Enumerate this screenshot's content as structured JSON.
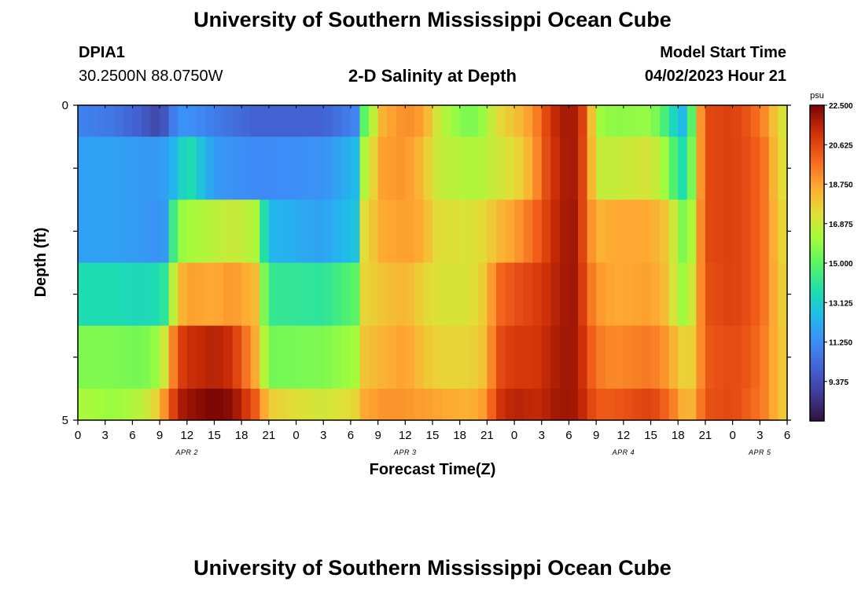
{
  "header": {
    "title": "University of Southern Mississippi Ocean Cube",
    "station_id": "DPIA1",
    "station_coords": "30.2500N  88.0750W",
    "subtitle": "2-D Salinity at Depth",
    "model_start_label": "Model Start Time",
    "model_start_value": "04/02/2023 Hour 21"
  },
  "footer": {
    "title": "University of Southern Mississippi Ocean Cube"
  },
  "chart_data": {
    "type": "heatmap",
    "title": "2-D Salinity at Depth",
    "xlabel": "Forecast Time(Z)",
    "ylabel": "Depth (ft)",
    "x_start_hour": 0,
    "x_end_hour": 78,
    "x_tick_step_hours": 3,
    "x_tick_labels": [
      "0",
      "3",
      "6",
      "9",
      "12",
      "15",
      "18",
      "21",
      "0",
      "3",
      "6",
      "9",
      "12",
      "15",
      "18",
      "21",
      "0",
      "3",
      "6",
      "9",
      "12",
      "15",
      "18",
      "21",
      "0",
      "3",
      "6"
    ],
    "day_labels": [
      {
        "label": "APR 2",
        "hour": 12
      },
      {
        "label": "APR 3",
        "hour": 36
      },
      {
        "label": "APR 4",
        "hour": 60
      },
      {
        "label": "APR 5",
        "hour": 75
      }
    ],
    "y_range": [
      0,
      5
    ],
    "y_tick_labels": [
      "0",
      "5"
    ],
    "y_minor_ticks": [
      0,
      1,
      2,
      3,
      4,
      5
    ],
    "depth_bands": [
      {
        "top": 0.0,
        "bottom": 0.5
      },
      {
        "top": 0.5,
        "bottom": 1.5
      },
      {
        "top": 1.5,
        "bottom": 2.5
      },
      {
        "top": 2.5,
        "bottom": 3.5
      },
      {
        "top": 3.5,
        "bottom": 4.5
      },
      {
        "top": 4.5,
        "bottom": 5.0
      }
    ],
    "salinity_keyframes": [
      {
        "hour": 0,
        "values": [
          11.0,
          11.8,
          11.8,
          13.6,
          15.6,
          16.4
        ]
      },
      {
        "hour": 4,
        "values": [
          10.6,
          11.8,
          11.8,
          13.6,
          15.6,
          16.0
        ]
      },
      {
        "hour": 7,
        "values": [
          9.8,
          11.6,
          11.6,
          13.4,
          15.4,
          16.6
        ]
      },
      {
        "hour": 8.5,
        "values": [
          9.2,
          11.6,
          11.4,
          13.6,
          16.0,
          17.6
        ]
      },
      {
        "hour": 9.5,
        "values": [
          9.6,
          11.8,
          11.6,
          14.0,
          17.0,
          19.0
        ]
      },
      {
        "hour": 11,
        "values": [
          11.4,
          12.6,
          15.8,
          18.0,
          20.6,
          21.6
        ]
      },
      {
        "hour": 12,
        "values": [
          11.4,
          14.0,
          16.2,
          18.8,
          21.2,
          22.0
        ]
      },
      {
        "hour": 15,
        "values": [
          10.8,
          11.6,
          16.6,
          18.6,
          21.6,
          22.5
        ]
      },
      {
        "hour": 17,
        "values": [
          10.4,
          11.4,
          17.0,
          19.0,
          21.2,
          22.2
        ]
      },
      {
        "hour": 19.5,
        "values": [
          10.0,
          11.2,
          16.4,
          18.2,
          18.6,
          20.2
        ]
      },
      {
        "hour": 21,
        "values": [
          10.0,
          11.2,
          12.4,
          14.2,
          15.4,
          17.8
        ]
      },
      {
        "hour": 27,
        "values": [
          10.0,
          11.4,
          11.8,
          14.0,
          15.6,
          17.0
        ]
      },
      {
        "hour": 30.5,
        "values": [
          11.0,
          12.4,
          12.8,
          15.0,
          16.2,
          17.6
        ]
      },
      {
        "hour": 31.5,
        "values": [
          15.0,
          16.4,
          17.4,
          17.6,
          18.0,
          18.6
        ]
      },
      {
        "hour": 33.5,
        "values": [
          18.4,
          18.8,
          18.6,
          18.0,
          18.4,
          19.0
        ]
      },
      {
        "hour": 36,
        "values": [
          19.2,
          19.0,
          18.8,
          18.4,
          18.8,
          19.0
        ]
      },
      {
        "hour": 38,
        "values": [
          18.8,
          18.2,
          18.6,
          17.6,
          18.0,
          18.8
        ]
      },
      {
        "hour": 39,
        "values": [
          17.6,
          17.2,
          17.6,
          17.4,
          17.8,
          18.8
        ]
      },
      {
        "hour": 40,
        "values": [
          16.6,
          16.8,
          17.4,
          17.2,
          17.6,
          18.6
        ]
      },
      {
        "hour": 43,
        "values": [
          15.4,
          16.4,
          17.2,
          17.2,
          17.6,
          18.4
        ]
      },
      {
        "hour": 45,
        "values": [
          16.2,
          16.6,
          17.6,
          18.0,
          18.2,
          19.0
        ]
      },
      {
        "hour": 46,
        "values": [
          17.4,
          17.0,
          18.2,
          19.8,
          20.4,
          21.0
        ]
      },
      {
        "hour": 48,
        "values": [
          18.0,
          17.4,
          18.8,
          20.4,
          21.0,
          21.6
        ]
      },
      {
        "hour": 50,
        "values": [
          19.0,
          18.6,
          19.8,
          20.8,
          21.0,
          21.4
        ]
      },
      {
        "hour": 51,
        "values": [
          20.0,
          20.0,
          20.4,
          21.0,
          21.2,
          21.4
        ]
      },
      {
        "hour": 52,
        "values": [
          21.2,
          21.0,
          21.2,
          21.4,
          21.6,
          21.8
        ]
      },
      {
        "hour": 54,
        "values": [
          22.0,
          22.0,
          22.0,
          22.0,
          22.0,
          22.0
        ]
      },
      {
        "hour": 55,
        "values": [
          21.6,
          21.6,
          21.8,
          21.8,
          21.8,
          21.8
        ]
      },
      {
        "hour": 56,
        "values": [
          20.0,
          19.8,
          19.6,
          20.0,
          20.6,
          21.0
        ]
      },
      {
        "hour": 57,
        "values": [
          16.2,
          16.8,
          18.4,
          19.0,
          19.6,
          20.2
        ]
      },
      {
        "hour": 59,
        "values": [
          15.8,
          16.8,
          18.6,
          18.6,
          19.2,
          20.2
        ]
      },
      {
        "hour": 63,
        "values": [
          16.0,
          17.2,
          18.6,
          18.8,
          19.6,
          20.8
        ]
      },
      {
        "hour": 65,
        "values": [
          14.2,
          15.8,
          17.8,
          18.0,
          18.8,
          19.8
        ]
      },
      {
        "hour": 66,
        "values": [
          12.6,
          13.8,
          16.2,
          16.2,
          18.0,
          19.0
        ]
      },
      {
        "hour": 67,
        "values": [
          12.4,
          13.6,
          15.0,
          16.0,
          17.4,
          18.0
        ]
      },
      {
        "hour": 68,
        "values": [
          17.4,
          17.4,
          17.8,
          18.0,
          18.2,
          18.8
        ]
      },
      {
        "hour": 69,
        "values": [
          20.6,
          20.6,
          20.6,
          20.4,
          20.2,
          20.4
        ]
      },
      {
        "hour": 72,
        "values": [
          20.8,
          20.8,
          20.8,
          20.8,
          20.6,
          20.6
        ]
      },
      {
        "hour": 74,
        "values": [
          20.2,
          20.4,
          20.4,
          20.4,
          20.2,
          20.0
        ]
      },
      {
        "hour": 75.5,
        "values": [
          19.2,
          19.6,
          19.6,
          19.6,
          19.4,
          19.4
        ]
      },
      {
        "hour": 77,
        "values": [
          17.6,
          17.8,
          18.0,
          18.2,
          18.2,
          18.2
        ]
      },
      {
        "hour": 78,
        "values": [
          16.8,
          17.0,
          17.2,
          17.4,
          17.6,
          17.6
        ]
      }
    ],
    "colorbar": {
      "unit": "psu",
      "min": 7.5,
      "max": 22.5,
      "tick_labels": [
        "22.500",
        "20.625",
        "18.750",
        "16.875",
        "15.000",
        "13.125",
        "11.250",
        "9.375"
      ],
      "tick_values": [
        22.5,
        20.625,
        18.75,
        16.875,
        15.0,
        13.125,
        11.25,
        9.375
      ]
    }
  }
}
